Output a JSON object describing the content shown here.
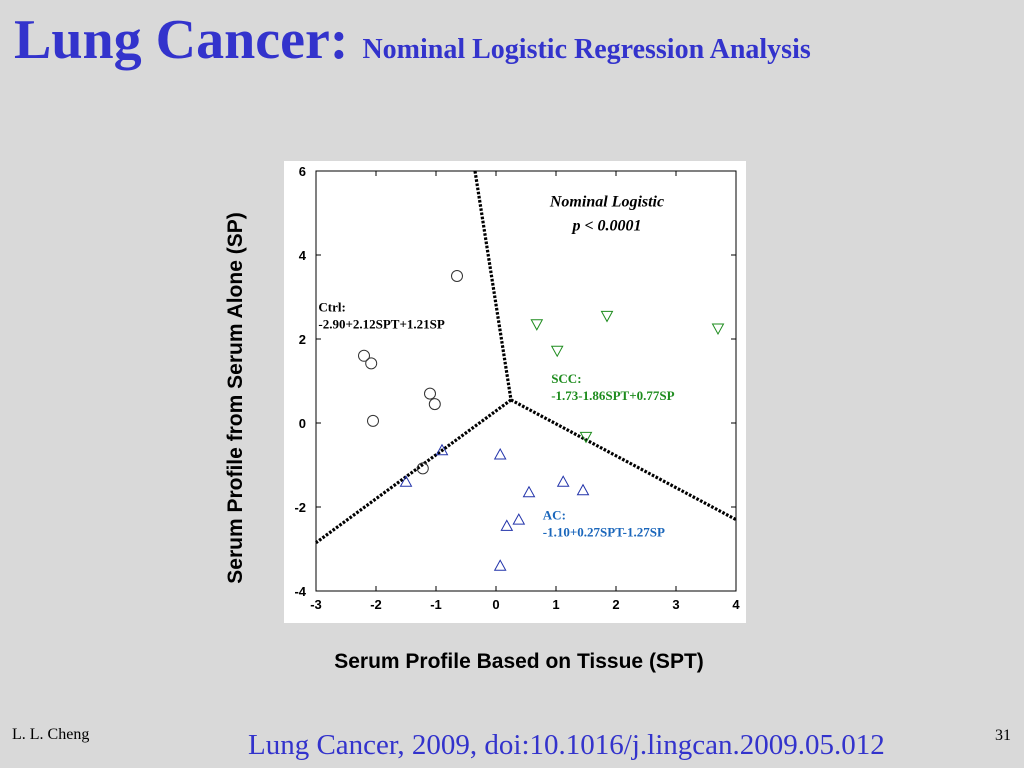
{
  "slide": {
    "title_main": "Lung Cancer:",
    "title_sub": "Nominal Logistic Regression Analysis",
    "author": "L. L. Cheng",
    "citation": "Lung Cancer, 2009, doi:10.1016/j.lingcan.2009.05.012",
    "page_number": "31"
  },
  "chart_data": {
    "type": "scatter",
    "xlabel": "Serum Profile Based on Tissue (SPT)",
    "ylabel": "Serum Profile from Serum Alone (SP)",
    "xlim": [
      -3,
      4
    ],
    "ylim": [
      -4,
      6
    ],
    "xticks": [
      "-3",
      "-2",
      "-1",
      "0",
      "1",
      "2",
      "3",
      "4"
    ],
    "yticks": [
      "6",
      "4",
      "2",
      "0",
      "-2",
      "-4"
    ],
    "grid": false,
    "header": {
      "line1": "Nominal Logistic",
      "line2": "p < 0.0001"
    },
    "series": [
      {
        "label_line1": "Ctrl:",
        "label_line2": "-2.90+2.12SPT+1.21SP",
        "marker": "circle",
        "color": "#333333",
        "label_color": "#000000",
        "points": [
          {
            "x": -0.65,
            "y": 3.5
          },
          {
            "x": -2.2,
            "y": 1.6
          },
          {
            "x": -2.08,
            "y": 1.42
          },
          {
            "x": -1.1,
            "y": 0.7
          },
          {
            "x": -1.02,
            "y": 0.45
          },
          {
            "x": -2.05,
            "y": 0.05
          },
          {
            "x": -1.22,
            "y": -1.08
          }
        ]
      },
      {
        "label_line1": "SCC:",
        "label_line2": "-1.73-1.86SPT+0.77SP",
        "marker": "triangle-down",
        "color": "#1e8c1e",
        "label_color": "#1e8c1e",
        "points": [
          {
            "x": 0.68,
            "y": 2.35
          },
          {
            "x": 1.85,
            "y": 2.55
          },
          {
            "x": 3.7,
            "y": 2.25
          },
          {
            "x": 1.02,
            "y": 1.72
          },
          {
            "x": 1.5,
            "y": -0.33
          }
        ]
      },
      {
        "label_line1": "AC:",
        "label_line2": "-1.10+0.27SPT-1.27SP",
        "marker": "triangle-up",
        "color": "#2233aa",
        "label_color": "#1a66bb",
        "points": [
          {
            "x": -0.9,
            "y": -0.65
          },
          {
            "x": -1.5,
            "y": -1.4
          },
          {
            "x": 0.07,
            "y": -0.75
          },
          {
            "x": 0.55,
            "y": -1.65
          },
          {
            "x": 1.12,
            "y": -1.4
          },
          {
            "x": 1.45,
            "y": -1.6
          },
          {
            "x": 0.38,
            "y": -2.3
          },
          {
            "x": 0.18,
            "y": -2.45
          },
          {
            "x": 0.07,
            "y": -3.4
          }
        ]
      }
    ],
    "boundaries": [
      {
        "x1": -0.35,
        "y1": 6.0,
        "x2": 0.25,
        "y2": 0.55
      },
      {
        "x1": 0.25,
        "y1": 0.55,
        "x2": -3.0,
        "y2": -2.85
      },
      {
        "x1": 0.25,
        "y1": 0.55,
        "x2": 4.0,
        "y2": -2.3
      }
    ]
  }
}
